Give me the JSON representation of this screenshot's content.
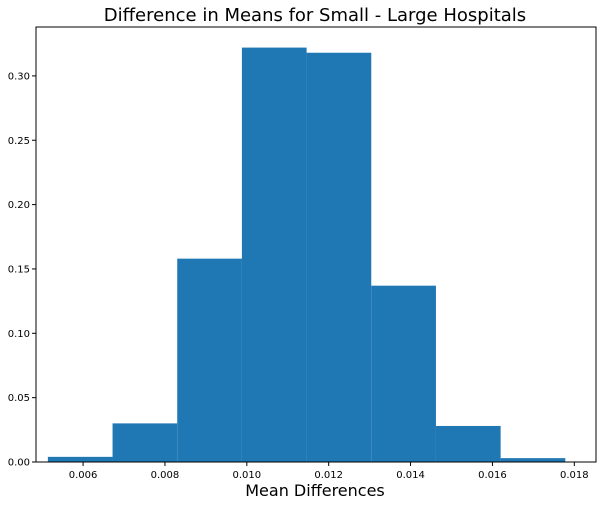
{
  "chart_data": {
    "type": "bar",
    "title": "Difference in Means for Small - Large Hospitals",
    "xlabel": "Mean Differences",
    "ylabel": "",
    "bar_color": "#1f77b4",
    "xlim": [
      0.00485,
      0.01853
    ],
    "ylim": [
      0,
      0.338
    ],
    "bins": [
      {
        "x0": 0.00514,
        "x1": 0.00672,
        "value": 0.004
      },
      {
        "x0": 0.00672,
        "x1": 0.0083,
        "value": 0.03
      },
      {
        "x0": 0.0083,
        "x1": 0.00988,
        "value": 0.158
      },
      {
        "x0": 0.00988,
        "x1": 0.01146,
        "value": 0.322
      },
      {
        "x0": 0.01146,
        "x1": 0.01304,
        "value": 0.318
      },
      {
        "x0": 0.01304,
        "x1": 0.01462,
        "value": 0.137
      },
      {
        "x0": 0.01462,
        "x1": 0.0162,
        "value": 0.028
      },
      {
        "x0": 0.0162,
        "x1": 0.01778,
        "value": 0.003
      }
    ],
    "x_ticks": [
      0.006,
      0.008,
      0.01,
      0.012,
      0.014,
      0.016,
      0.018
    ],
    "x_tick_labels": [
      "0.006",
      "0.008",
      "0.010",
      "0.012",
      "0.014",
      "0.016",
      "0.018"
    ],
    "y_ticks": [
      0.0,
      0.05,
      0.1,
      0.15,
      0.2,
      0.25,
      0.3
    ],
    "y_tick_labels": [
      "0.00",
      "0.05",
      "0.10",
      "0.15",
      "0.20",
      "0.25",
      "0.30"
    ],
    "grid": false,
    "legend": false
  }
}
